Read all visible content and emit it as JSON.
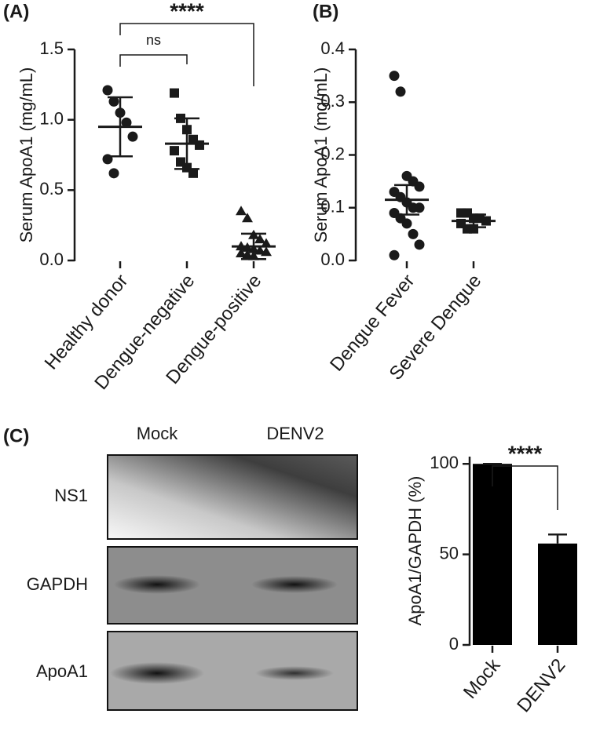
{
  "chart_data": [
    {
      "type": "strip",
      "title": "(A)",
      "y_label": "Serum  ApoA1 (mg/mL)",
      "categories": [
        "Healthy donor",
        "Dengue-negative",
        "Dengue-positive"
      ],
      "groups": [
        {
          "marker": "circle",
          "values": [
            1.21,
            1.13,
            1.05,
            0.98,
            0.88,
            0.72,
            0.62
          ],
          "mean": 0.95,
          "sd": 0.21
        },
        {
          "marker": "square",
          "values": [
            1.19,
            1.01,
            0.93,
            0.86,
            0.82,
            0.78,
            0.7,
            0.66,
            0.62
          ],
          "mean": 0.83,
          "sd": 0.18
        },
        {
          "marker": "triangle",
          "values": [
            0.35,
            0.3,
            0.18,
            0.15,
            0.12,
            0.1,
            0.09,
            0.08,
            0.07,
            0.06,
            0.05,
            0.04,
            0.03
          ],
          "mean": 0.1,
          "sd": 0.09
        }
      ],
      "comparisons": [
        {
          "label": "****",
          "groups": [
            0,
            2
          ]
        },
        {
          "label": "ns",
          "groups": [
            0,
            1
          ]
        }
      ],
      "color": "#1a1a1a",
      "ylim": [
        0,
        1.5
      ],
      "yticks": [
        {
          "value": 0,
          "label": "0.0"
        },
        0.5,
        {
          "value": 1,
          "label": "1.0"
        },
        1.5
      ]
    },
    {
      "type": "strip",
      "title": "(B)",
      "y_label": "Serum ApoA1 (mg/mL)",
      "categories": [
        "Dengue Fever",
        "Severe Dengue"
      ],
      "groups": [
        {
          "marker": "circle",
          "values": [
            0.35,
            0.32,
            0.16,
            0.15,
            0.14,
            0.13,
            0.12,
            0.11,
            0.1,
            0.1,
            0.09,
            0.08,
            0.07,
            0.05,
            0.03,
            0.01
          ],
          "mean": 0.115,
          "sd": 0.028
        },
        {
          "marker": "square",
          "values": [
            0.09,
            0.09,
            0.08,
            0.08,
            0.075,
            0.07,
            0.06,
            0.06
          ],
          "mean": 0.075,
          "sd": 0.012
        }
      ],
      "color": "#1a1a1a",
      "ylim": [
        0,
        0.4
      ],
      "yticks": [
        {
          "value": 0,
          "label": "0.0"
        },
        0.1,
        0.2,
        0.3,
        0.4
      ]
    },
    {
      "type": "bar",
      "y_label": "ApoA1/GAPDH (%)",
      "categories": [
        "Mock",
        "DENV2"
      ],
      "values": [
        100,
        56
      ],
      "errors": [
        0,
        5
      ],
      "comparisons": [
        {
          "label": "****",
          "groups": [
            0,
            1
          ]
        }
      ],
      "color": "#000000",
      "ylim": [
        0,
        104
      ],
      "yticks": [
        0,
        50,
        100
      ]
    }
  ],
  "blot": {
    "panel": "(C)",
    "columns": [
      "Mock",
      "DENV2"
    ],
    "rows": [
      "NS1",
      "GAPDH",
      "ApoA1"
    ]
  }
}
